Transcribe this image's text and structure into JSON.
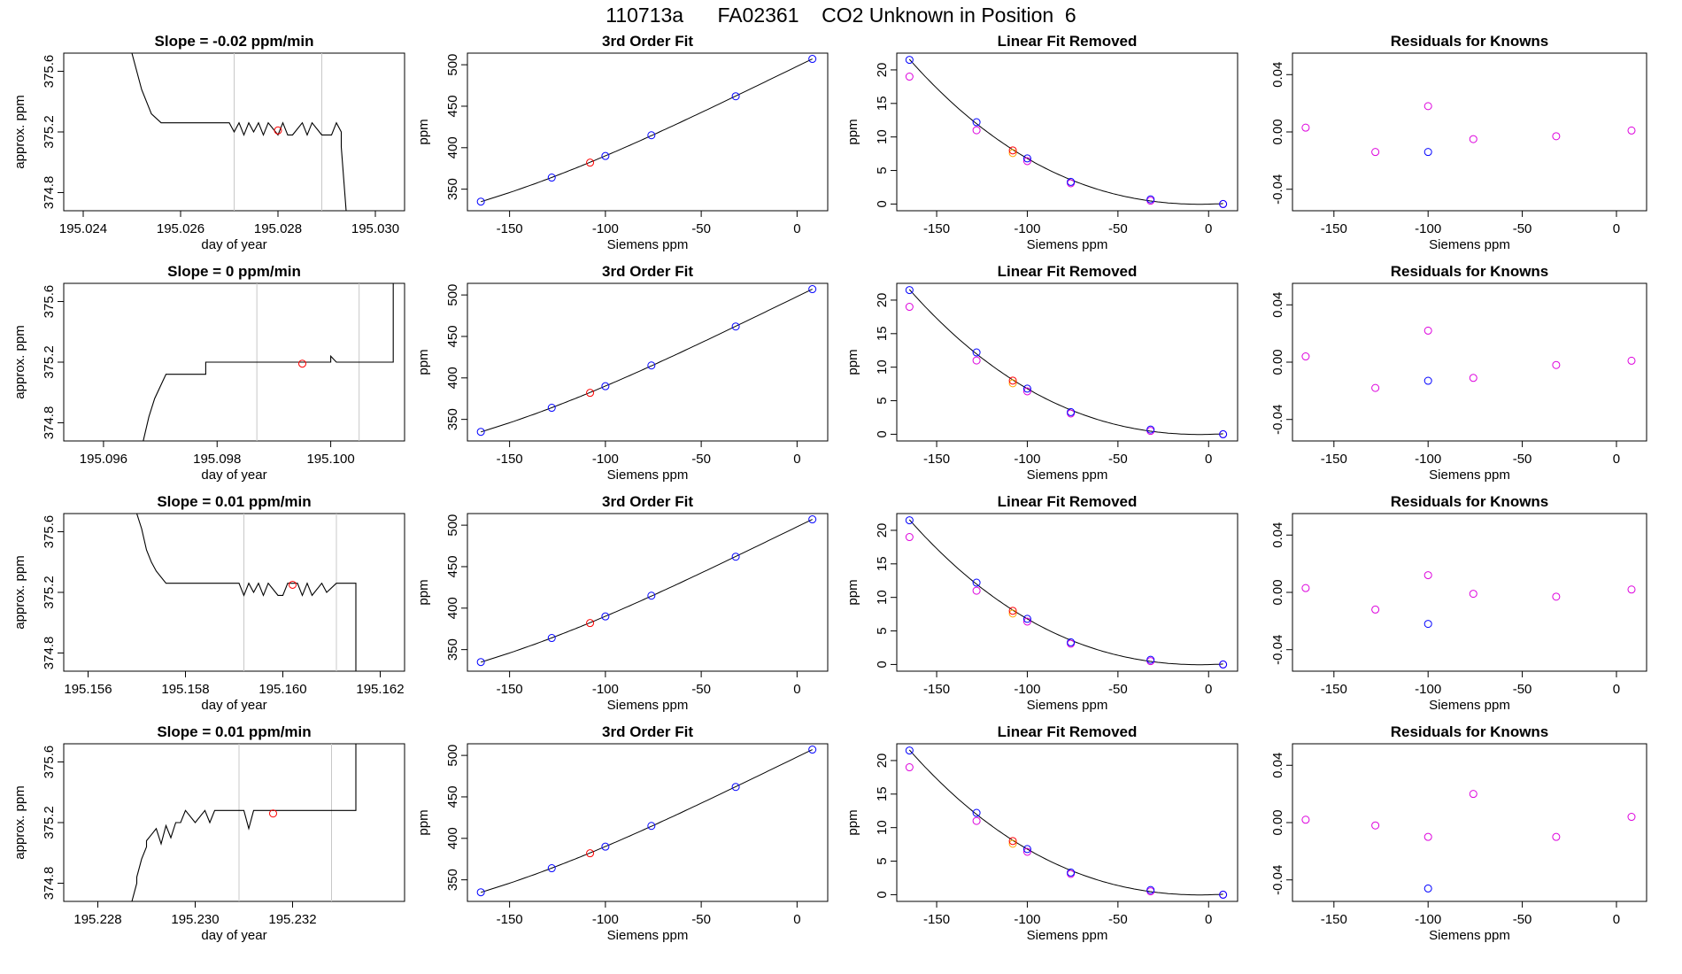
{
  "figure": {
    "title": "110713a      FA02361    CO2 Unknown in Position  6"
  },
  "colors": {
    "trace": "#000000",
    "vline": "#c8c8c8",
    "unknown_point": "#ff0000",
    "known_point": "#0000ff",
    "removed_point": "#dd00dd",
    "unknown_removed_point": "#ffa500",
    "curve": "#000000"
  },
  "chart_data": [
    {
      "type": "line",
      "title": "Slope =  -0.02  ppm/min",
      "xlabel": "day of year",
      "ylabel": "approx. ppm",
      "xlim": [
        195.0236,
        195.0306
      ],
      "ylim": [
        374.68,
        375.72
      ],
      "xticks": [
        "195.024",
        "195.026",
        "195.028",
        "195.030"
      ],
      "yticks": [
        "374.8",
        "375.2",
        "375.6"
      ],
      "vlines": [
        195.0271,
        195.0289
      ],
      "series": [
        {
          "x": [
            195.025,
            195.0251,
            195.0251,
            195.0252,
            195.0252,
            195.0253,
            195.0253,
            195.0254,
            195.0254,
            195.0256,
            195.0257,
            195.027,
            195.0271,
            195.0272,
            195.0273,
            195.0274,
            195.0275,
            195.0276,
            195.0277,
            195.0278,
            195.028,
            195.0281,
            195.0282,
            195.0283,
            195.0285,
            195.0286,
            195.0287,
            195.0289,
            195.029,
            195.0291,
            195.0292,
            195.0293,
            195.0293,
            195.0294
          ],
          "y": [
            375.72,
            375.6,
            375.6,
            375.48,
            375.48,
            375.4,
            375.4,
            375.32,
            375.32,
            375.26,
            375.26,
            375.26,
            375.2,
            375.26,
            375.18,
            375.26,
            375.2,
            375.26,
            375.18,
            375.26,
            375.18,
            375.26,
            375.18,
            375.18,
            375.26,
            375.18,
            375.26,
            375.18,
            375.18,
            375.18,
            375.26,
            375.2,
            375.1,
            374.68
          ]
        }
      ],
      "points": [
        {
          "x": 195.028,
          "y": 375.21
        }
      ]
    },
    {
      "type": "scatter",
      "title": "3rd Order Fit",
      "xlabel": "Siemens ppm",
      "ylabel": "ppm",
      "xlim": [
        -172,
        16
      ],
      "ylim": [
        324,
        514
      ],
      "xticks": [
        "-150",
        "-100",
        "-50",
        "0"
      ],
      "yticks": [
        "350",
        "400",
        "450",
        "500"
      ],
      "known": {
        "x": [
          -165,
          -128,
          -100,
          -76,
          -32,
          8
        ],
        "y": [
          335,
          364,
          390,
          415,
          462,
          507
        ]
      },
      "unknown": {
        "x": [
          -108
        ],
        "y": [
          382
        ]
      }
    },
    {
      "type": "scatter",
      "title": "Linear Fit Removed",
      "xlabel": "Siemens ppm",
      "ylabel": "ppm",
      "xlim": [
        -172,
        16
      ],
      "ylim": [
        -1,
        22.5
      ],
      "xticks": [
        "-150",
        "-100",
        "-50",
        "0"
      ],
      "yticks": [
        "0",
        "5",
        "10",
        "15",
        "20"
      ],
      "known": {
        "x": [
          -165,
          -128,
          -100,
          -76,
          -32,
          8
        ],
        "y": [
          21.5,
          12.2,
          6.8,
          3.3,
          0.7,
          0.0
        ]
      },
      "removed": {
        "x": [
          -165,
          -128,
          -100,
          -76,
          -32,
          8
        ],
        "y": [
          19.0,
          11.0,
          6.4,
          3.1,
          0.5,
          0.0
        ]
      },
      "unknown": {
        "x": [
          -108
        ],
        "y": [
          8.0
        ]
      },
      "unknown_removed": {
        "x": [
          -108
        ],
        "y": [
          7.6
        ]
      }
    },
    {
      "type": "scatter",
      "title": "Residuals for Knowns",
      "xlabel": "Siemens ppm",
      "ylabel": "",
      "xlim": [
        -172,
        16
      ],
      "ylim": [
        -0.055,
        0.055
      ],
      "xticks": [
        "-150",
        "-100",
        "-50",
        "0"
      ],
      "yticks": [
        "-0.04",
        "0.00",
        "0.04"
      ],
      "removed": {
        "x": [
          -165,
          -128,
          -100,
          -76,
          -32,
          8
        ],
        "y": [
          0.003,
          -0.014,
          0.018,
          -0.005,
          -0.003,
          0.001
        ]
      },
      "known": {
        "x": [
          -100
        ],
        "y": [
          -0.014
        ]
      }
    },
    {
      "type": "line",
      "title": "Slope =  0  ppm/min",
      "xlabel": "day of year",
      "ylabel": "approx. ppm",
      "xlim": [
        195.0953,
        195.1013
      ],
      "ylim": [
        374.68,
        375.72
      ],
      "xticks": [
        "195.096",
        "195.098",
        "195.100"
      ],
      "yticks": [
        "374.8",
        "375.2",
        "375.6"
      ],
      "vlines": [
        195.0987,
        195.1005
      ],
      "series": [
        {
          "x": [
            195.0967,
            195.0968,
            195.0968,
            195.0969,
            195.0969,
            195.097,
            195.097,
            195.0971,
            195.0971,
            195.0978,
            195.0978,
            195.1,
            195.1,
            195.1001,
            195.1011,
            195.1011
          ],
          "y": [
            374.68,
            374.84,
            374.84,
            374.96,
            374.96,
            375.04,
            375.04,
            375.12,
            375.12,
            375.12,
            375.2,
            375.2,
            375.24,
            375.2,
            375.2,
            375.72
          ]
        }
      ],
      "points": [
        {
          "x": 195.0995,
          "y": 375.19
        }
      ]
    },
    {
      "type": "scatter",
      "title": "3rd Order Fit",
      "xlabel": "Siemens ppm",
      "ylabel": "ppm",
      "xlim": [
        -172,
        16
      ],
      "ylim": [
        324,
        514
      ],
      "xticks": [
        "-150",
        "-100",
        "-50",
        "0"
      ],
      "yticks": [
        "350",
        "400",
        "450",
        "500"
      ],
      "known": {
        "x": [
          -165,
          -128,
          -100,
          -76,
          -32,
          8
        ],
        "y": [
          335,
          364,
          390,
          415,
          462,
          507
        ]
      },
      "unknown": {
        "x": [
          -108
        ],
        "y": [
          382
        ]
      }
    },
    {
      "type": "scatter",
      "title": "Linear Fit Removed",
      "xlabel": "Siemens ppm",
      "ylabel": "ppm",
      "xlim": [
        -172,
        16
      ],
      "ylim": [
        -1,
        22.5
      ],
      "xticks": [
        "-150",
        "-100",
        "-50",
        "0"
      ],
      "yticks": [
        "0",
        "5",
        "10",
        "15",
        "20"
      ],
      "known": {
        "x": [
          -165,
          -128,
          -100,
          -76,
          -32,
          8
        ],
        "y": [
          21.5,
          12.2,
          6.8,
          3.3,
          0.7,
          0.0
        ]
      },
      "removed": {
        "x": [
          -165,
          -128,
          -100,
          -76,
          -32,
          8
        ],
        "y": [
          19.0,
          11.0,
          6.4,
          3.1,
          0.5,
          0.0
        ]
      },
      "unknown": {
        "x": [
          -108
        ],
        "y": [
          8.0
        ]
      },
      "unknown_removed": {
        "x": [
          -108
        ],
        "y": [
          7.6
        ]
      }
    },
    {
      "type": "scatter",
      "title": "Residuals for Knowns",
      "xlabel": "Siemens ppm",
      "ylabel": "",
      "xlim": [
        -172,
        16
      ],
      "ylim": [
        -0.055,
        0.055
      ],
      "xticks": [
        "-150",
        "-100",
        "-50",
        "0"
      ],
      "yticks": [
        "-0.04",
        "0.00",
        "0.04"
      ],
      "removed": {
        "x": [
          -165,
          -128,
          -100,
          -76,
          -32,
          8
        ],
        "y": [
          0.004,
          -0.018,
          0.022,
          -0.011,
          -0.002,
          0.001
        ]
      },
      "known": {
        "x": [
          -100
        ],
        "y": [
          -0.013
        ]
      }
    },
    {
      "type": "line",
      "title": "Slope =  0.01  ppm/min",
      "xlabel": "day of year",
      "ylabel": "approx. ppm",
      "xlim": [
        195.1555,
        195.1625
      ],
      "ylim": [
        374.68,
        375.72
      ],
      "xticks": [
        "195.156",
        "195.158",
        "195.160",
        "195.162"
      ],
      "yticks": [
        "374.8",
        "375.2",
        "375.6"
      ],
      "vlines": [
        195.1592,
        195.1611
      ],
      "series": [
        {
          "x": [
            195.157,
            195.1571,
            195.1571,
            195.1572,
            195.1572,
            195.1573,
            195.1573,
            195.1574,
            195.1574,
            195.1576,
            195.1576,
            195.1591,
            195.1592,
            195.1593,
            195.1594,
            195.1595,
            195.1596,
            195.1597,
            195.1599,
            195.16,
            195.1601,
            195.1603,
            195.1604,
            195.1605,
            195.1606,
            195.1608,
            195.1609,
            195.1611,
            195.1615,
            195.1615
          ],
          "y": [
            375.72,
            375.62,
            375.62,
            375.48,
            375.48,
            375.4,
            375.4,
            375.34,
            375.34,
            375.26,
            375.26,
            375.26,
            375.18,
            375.26,
            375.2,
            375.26,
            375.18,
            375.26,
            375.18,
            375.18,
            375.26,
            375.26,
            375.18,
            375.26,
            375.18,
            375.26,
            375.2,
            375.26,
            375.26,
            374.68
          ]
        }
      ],
      "points": [
        {
          "x": 195.1602,
          "y": 375.25
        }
      ]
    },
    {
      "type": "scatter",
      "title": "3rd Order Fit",
      "xlabel": "Siemens ppm",
      "ylabel": "ppm",
      "xlim": [
        -172,
        16
      ],
      "ylim": [
        324,
        514
      ],
      "xticks": [
        "-150",
        "-100",
        "-50",
        "0"
      ],
      "yticks": [
        "350",
        "400",
        "450",
        "500"
      ],
      "known": {
        "x": [
          -165,
          -128,
          -100,
          -76,
          -32,
          8
        ],
        "y": [
          335,
          364,
          390,
          415,
          462,
          507
        ]
      },
      "unknown": {
        "x": [
          -108
        ],
        "y": [
          382
        ]
      }
    },
    {
      "type": "scatter",
      "title": "Linear Fit Removed",
      "xlabel": "Siemens ppm",
      "ylabel": "ppm",
      "xlim": [
        -172,
        16
      ],
      "ylim": [
        -1,
        22.5
      ],
      "xticks": [
        "-150",
        "-100",
        "-50",
        "0"
      ],
      "yticks": [
        "0",
        "5",
        "10",
        "15",
        "20"
      ],
      "known": {
        "x": [
          -165,
          -128,
          -100,
          -76,
          -32,
          8
        ],
        "y": [
          21.5,
          12.2,
          6.8,
          3.3,
          0.7,
          0.0
        ]
      },
      "removed": {
        "x": [
          -165,
          -128,
          -100,
          -76,
          -32,
          8
        ],
        "y": [
          19.0,
          11.0,
          6.4,
          3.1,
          0.5,
          0.0
        ]
      },
      "unknown": {
        "x": [
          -108
        ],
        "y": [
          8.0
        ]
      },
      "unknown_removed": {
        "x": [
          -108
        ],
        "y": [
          7.6
        ]
      }
    },
    {
      "type": "scatter",
      "title": "Residuals for Knowns",
      "xlabel": "Siemens ppm",
      "ylabel": "",
      "xlim": [
        -172,
        16
      ],
      "ylim": [
        -0.055,
        0.055
      ],
      "xticks": [
        "-150",
        "-100",
        "-50",
        "0"
      ],
      "yticks": [
        "-0.04",
        "0.00",
        "0.04"
      ],
      "removed": {
        "x": [
          -165,
          -128,
          -100,
          -76,
          -32,
          8
        ],
        "y": [
          0.003,
          -0.012,
          0.012,
          -0.001,
          -0.003,
          0.002
        ]
      },
      "known": {
        "x": [
          -100
        ],
        "y": [
          -0.022
        ]
      }
    },
    {
      "type": "line",
      "title": "Slope =  0.01  ppm/min",
      "xlabel": "day of year",
      "ylabel": "approx. ppm",
      "xlim": [
        195.2273,
        195.2343
      ],
      "ylim": [
        374.68,
        375.72
      ],
      "xticks": [
        "195.228",
        "195.230",
        "195.232"
      ],
      "yticks": [
        "374.8",
        "375.2",
        "375.6"
      ],
      "vlines": [
        195.2309,
        195.2328
      ],
      "series": [
        {
          "x": [
            195.2287,
            195.2288,
            195.2288,
            195.2289,
            195.2289,
            195.229,
            195.229,
            195.2291,
            195.2292,
            195.2293,
            195.2294,
            195.2295,
            195.2296,
            195.2297,
            195.2298,
            195.23,
            195.2302,
            195.2303,
            195.2304,
            195.2306,
            195.2309,
            195.231,
            195.2311,
            195.2312,
            195.2313,
            195.2333,
            195.2333
          ],
          "y": [
            374.68,
            374.8,
            374.84,
            374.96,
            374.96,
            375.04,
            375.08,
            375.12,
            375.16,
            375.06,
            375.18,
            375.1,
            375.2,
            375.2,
            375.28,
            375.2,
            375.28,
            375.2,
            375.28,
            375.28,
            375.28,
            375.28,
            375.16,
            375.28,
            375.28,
            375.28,
            375.72
          ]
        }
      ],
      "points": [
        {
          "x": 195.2316,
          "y": 375.26
        }
      ]
    },
    {
      "type": "scatter",
      "title": "3rd Order Fit",
      "xlabel": "Siemens ppm",
      "ylabel": "ppm",
      "xlim": [
        -172,
        16
      ],
      "ylim": [
        324,
        514
      ],
      "xticks": [
        "-150",
        "-100",
        "-50",
        "0"
      ],
      "yticks": [
        "350",
        "400",
        "450",
        "500"
      ],
      "known": {
        "x": [
          -165,
          -128,
          -100,
          -76,
          -32,
          8
        ],
        "y": [
          335,
          364,
          390,
          415,
          462,
          507
        ]
      },
      "unknown": {
        "x": [
          -108
        ],
        "y": [
          382
        ]
      }
    },
    {
      "type": "scatter",
      "title": "Linear Fit Removed",
      "xlabel": "Siemens ppm",
      "ylabel": "ppm",
      "xlim": [
        -172,
        16
      ],
      "ylim": [
        -1,
        22.5
      ],
      "xticks": [
        "-150",
        "-100",
        "-50",
        "0"
      ],
      "yticks": [
        "0",
        "5",
        "10",
        "15",
        "20"
      ],
      "known": {
        "x": [
          -165,
          -128,
          -100,
          -76,
          -32,
          8
        ],
        "y": [
          21.5,
          12.2,
          6.8,
          3.3,
          0.7,
          0.0
        ]
      },
      "removed": {
        "x": [
          -165,
          -128,
          -100,
          -76,
          -32,
          8
        ],
        "y": [
          19.0,
          11.0,
          6.4,
          3.1,
          0.5,
          0.0
        ]
      },
      "unknown": {
        "x": [
          -108
        ],
        "y": [
          8.0
        ]
      },
      "unknown_removed": {
        "x": [
          -108
        ],
        "y": [
          7.6
        ]
      }
    },
    {
      "type": "scatter",
      "title": "Residuals for Knowns",
      "xlabel": "Siemens ppm",
      "ylabel": "",
      "xlim": [
        -172,
        16
      ],
      "ylim": [
        -0.055,
        0.055
      ],
      "xticks": [
        "-150",
        "-100",
        "-50",
        "0"
      ],
      "yticks": [
        "-0.04",
        "0.00",
        "0.04"
      ],
      "removed": {
        "x": [
          -165,
          -128,
          -100,
          -76,
          -32,
          8
        ],
        "y": [
          0.002,
          -0.002,
          -0.01,
          0.02,
          -0.01,
          0.004
        ]
      },
      "known": {
        "x": [
          -100
        ],
        "y": [
          -0.046
        ]
      }
    }
  ]
}
